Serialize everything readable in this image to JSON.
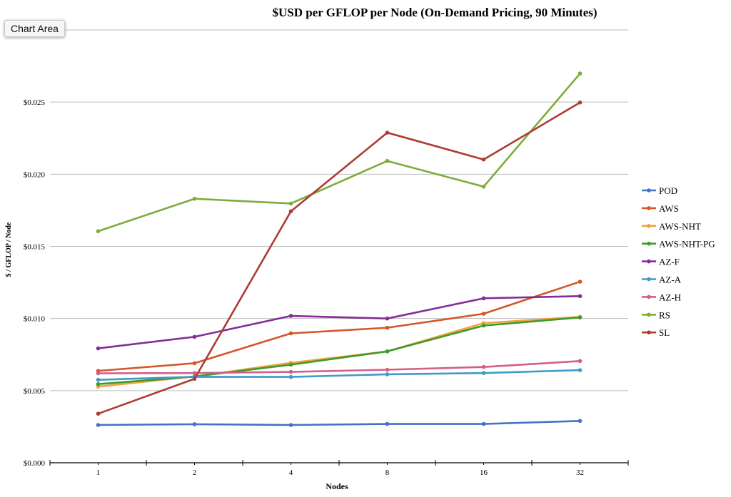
{
  "tooltip": "Chart Area",
  "chart_data": {
    "type": "line",
    "title": "$USD per GFLOP per Node (On-Demand Pricing, 90 Minutes)",
    "xlabel": "Nodes",
    "ylabel": "$ / GFLOP / Node",
    "categories": [
      "1",
      "2",
      "4",
      "8",
      "16",
      "32"
    ],
    "ylim": [
      0,
      0.03
    ],
    "yticks": [
      {
        "value": 0.0,
        "label": "$0.000"
      },
      {
        "value": 0.005,
        "label": "$0.005"
      },
      {
        "value": 0.01,
        "label": "$0.010"
      },
      {
        "value": 0.015,
        "label": "$0.015"
      },
      {
        "value": 0.02,
        "label": "$0.020"
      },
      {
        "value": 0.025,
        "label": "$0.025"
      }
    ],
    "grid": true,
    "legend_position": "right",
    "series": [
      {
        "name": "POD",
        "color": "#4472c4",
        "values": [
          0.00262,
          0.00267,
          0.00262,
          0.00269,
          0.00269,
          0.0029
        ]
      },
      {
        "name": "AWS",
        "color": "#d55628",
        "values": [
          0.00637,
          0.0069,
          0.00897,
          0.00936,
          0.01033,
          0.01255
        ]
      },
      {
        "name": "AWS-NHT",
        "color": "#f0a43c",
        "values": [
          0.00528,
          0.00598,
          0.00693,
          0.00772,
          0.00968,
          0.01012
        ]
      },
      {
        "name": "AWS-NHT-PG",
        "color": "#3f9a2c",
        "values": [
          0.00545,
          0.00598,
          0.0068,
          0.00772,
          0.00951,
          0.01007
        ]
      },
      {
        "name": "AZ-F",
        "color": "#852c97",
        "values": [
          0.00793,
          0.00873,
          0.01018,
          0.01,
          0.0114,
          0.01155
        ]
      },
      {
        "name": "AZ-A",
        "color": "#3f9bc6",
        "values": [
          0.00575,
          0.00596,
          0.00595,
          0.00613,
          0.00622,
          0.00642
        ]
      },
      {
        "name": "AZ-H",
        "color": "#d15f8a",
        "values": [
          0.0062,
          0.00622,
          0.0063,
          0.00645,
          0.00664,
          0.00705
        ]
      },
      {
        "name": "RS",
        "color": "#7cad3a",
        "values": [
          0.01605,
          0.0183,
          0.01797,
          0.02092,
          0.01914,
          0.02698
        ]
      },
      {
        "name": "SL",
        "color": "#ad3b36",
        "values": [
          0.0034,
          0.00582,
          0.01743,
          0.02288,
          0.02102,
          0.02497
        ]
      }
    ]
  }
}
